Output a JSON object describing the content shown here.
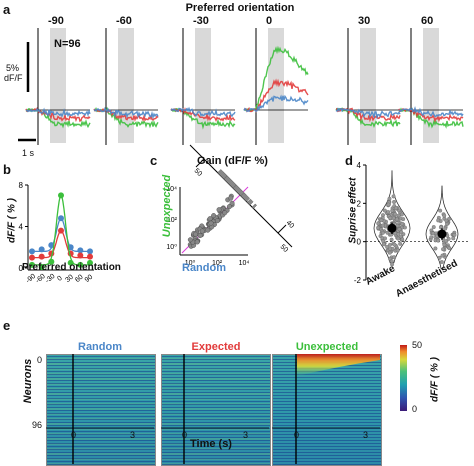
{
  "panel_labels": {
    "a": "a",
    "b": "b",
    "c": "c",
    "d": "d",
    "e": "e"
  },
  "panel_a": {
    "title": "Preferred orientation",
    "orientations": [
      "-90",
      "-60",
      "-30",
      "0",
      "30",
      "60"
    ],
    "n_label": "N=96",
    "scale_value": "5%",
    "scale_unit": "dF/F",
    "time_scale": "1 s"
  },
  "panel_b": {
    "ylabel": "dF/F ( % )",
    "xlabel": "Preferred orientation",
    "yticks": [
      "8",
      "4",
      "0"
    ],
    "xticks": [
      "-90",
      "-60",
      "-30",
      "0",
      "30",
      "60",
      "90"
    ]
  },
  "panel_c": {
    "title": "Gain (dF/F %)",
    "ylabel": "Unexpected",
    "xlabel": "Random",
    "yticks": [
      "10⁴",
      "10²",
      "10⁰"
    ],
    "xticks": [
      "10⁰",
      "10²",
      "10⁴"
    ],
    "hist_ticks": [
      "50",
      "40",
      "50"
    ]
  },
  "panel_d": {
    "ylabel": "Suprise effect",
    "yticks": [
      "4",
      "2",
      "0",
      "-2"
    ],
    "groups": [
      "Awake",
      "Anaesthetised"
    ]
  },
  "panel_e": {
    "titles": [
      "Random",
      "Expected",
      "Unexpected"
    ],
    "ylabel": "Neurons",
    "y_top": "0",
    "y_bottom": "96",
    "x_start": "0",
    "x_end": "3",
    "xlabel": "Time (s)",
    "cbar_max": "50",
    "cbar_min": "0",
    "cbar_label": "dF/F ( % )"
  },
  "colors": {
    "random": "#4a86c8",
    "expected": "#e23b3b",
    "unexpected": "#3cbf3c",
    "stim_shade": "#d9d9d9"
  },
  "chart_data": [
    {
      "type": "line",
      "panel": "b",
      "x": [
        -90,
        -60,
        -30,
        0,
        30,
        60,
        90
      ],
      "series": [
        {
          "values": [
            1.6,
            1.8,
            2.2,
            4.8,
            2.0,
            1.7,
            1.6
          ]
        },
        {
          "values": [
            1.0,
            1.1,
            1.4,
            3.6,
            1.4,
            1.2,
            1.1
          ]
        },
        {
          "values": [
            0.3,
            0.1,
            0.6,
            7.0,
            0.5,
            0.3,
            0.5
          ]
        }
      ],
      "xlabel": "Preferred orientation",
      "ylabel": "dF/F ( % )",
      "ylim": [
        0,
        8
      ]
    },
    {
      "type": "scatter",
      "panel": "c",
      "title": "Gain (dF/F %)",
      "xlabel": "Random",
      "ylabel": "Unexpected",
      "scale": "log",
      "xlim": [
        0.3,
        10000
      ],
      "ylim": [
        0.3,
        10000
      ]
    },
    {
      "type": "violin",
      "panel": "d",
      "ylabel": "Suprise effect",
      "categories": [
        "Awake",
        "Anaesthetised"
      ],
      "means": [
        0.7,
        0.4
      ],
      "ylim": [
        -2,
        4
      ]
    }
  ]
}
